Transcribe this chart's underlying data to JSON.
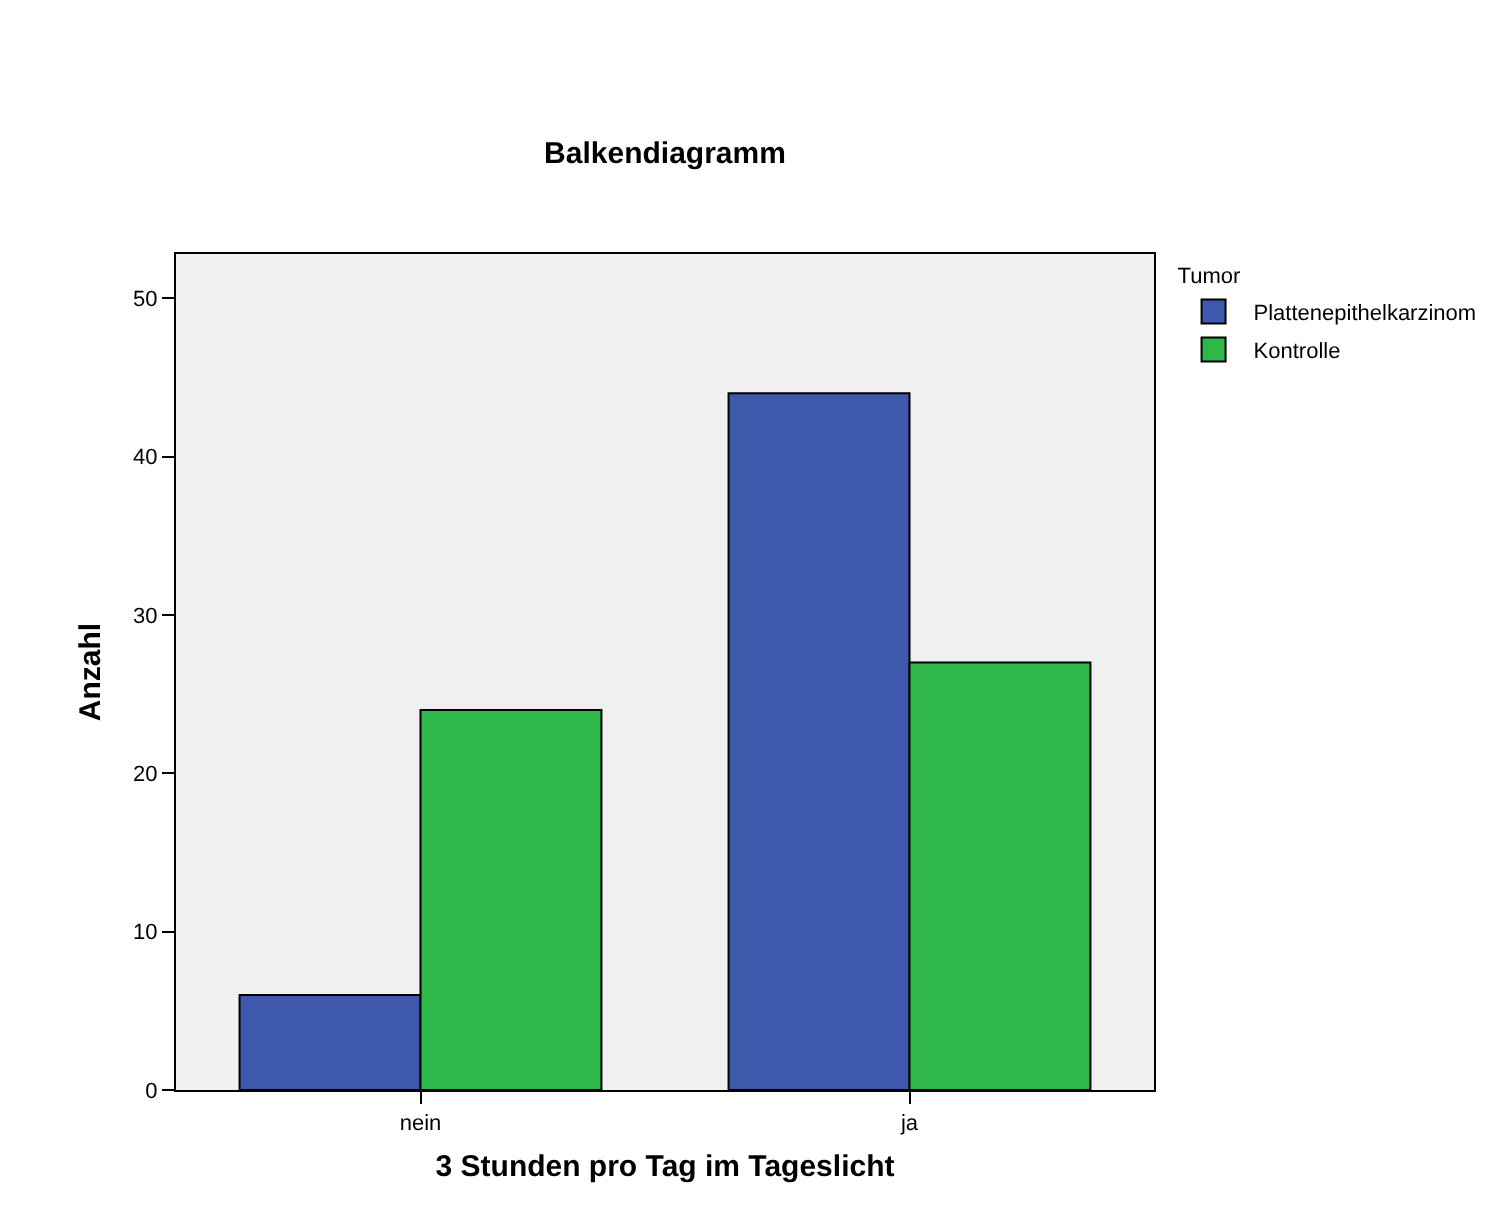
{
  "chart_data": {
    "type": "bar",
    "title": "Balkendiagramm",
    "xlabel": "3 Stunden pro Tag im Tageslicht",
    "ylabel": "Anzahl",
    "legend_title": "Tumor",
    "categories": [
      "nein",
      "ja"
    ],
    "series": [
      {
        "name": "Plattenepithelkarzinom",
        "color": "#3e58ac",
        "values": [
          6,
          44
        ]
      },
      {
        "name": "Kontrolle",
        "color": "#2fb84a",
        "values": [
          24,
          27
        ]
      }
    ],
    "ylim": [
      0,
      52.8
    ],
    "yticks": [
      0,
      10,
      20,
      30,
      40,
      50
    ],
    "grid": false,
    "legend": "top right"
  }
}
